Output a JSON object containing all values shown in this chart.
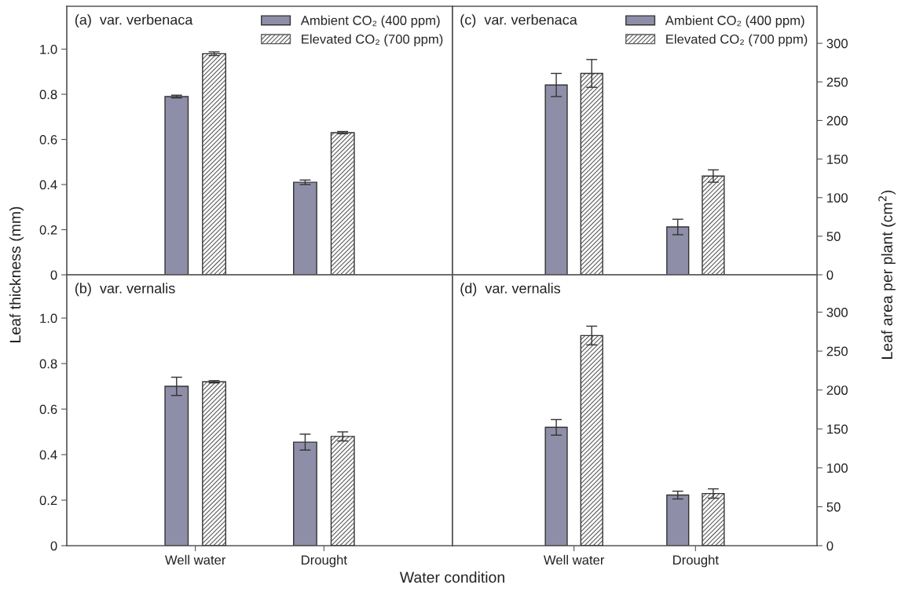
{
  "chart_data": [
    {
      "type": "bar",
      "title": "(a)  var. verbenaca",
      "ylabel": "Leaf thickness (mm)",
      "categories": [
        null,
        null
      ],
      "tick_labels": "y",
      "legend": "top right",
      "series": [
        {
          "name": "Ambient CO₂ (400 ppm)",
          "color": "#8e8ea8",
          "values": [
            0.79,
            0.41
          ],
          "errors": [
            0.006,
            0.01
          ]
        },
        {
          "name": "Elevated CO₂ (700 ppm)",
          "color": "#5a5a5a",
          "values": [
            0.98,
            0.63
          ],
          "errors": [
            0.008,
            0.005
          ]
        }
      ],
      "ylim": [
        0,
        1.19
      ],
      "yticks": [
        0,
        0.2,
        0.4,
        0.6,
        0.8,
        {
          "value": 1,
          "label": "1.0"
        }
      ]
    },
    {
      "type": "bar",
      "title": "(b)  var. vernalis",
      "xlabel": "Water condition",
      "categories": [
        "Well water",
        "Drought"
      ],
      "series": [
        {
          "color": "#8e8ea8",
          "values": [
            0.7,
            0.455
          ],
          "errors": [
            0.04,
            0.035
          ]
        },
        {
          "color": "#5a5a5a",
          "values": [
            0.72,
            0.48
          ],
          "errors": [
            0.005,
            0.02
          ]
        }
      ],
      "ylim": [
        0,
        1.19
      ],
      "yticks": [
        0,
        0.2,
        0.4,
        0.6,
        0.8,
        {
          "value": 1,
          "label": "1.0"
        }
      ]
    },
    {
      "type": "bar",
      "title": "(c)  var. verbenaca",
      "y2label": "Leaf area per plant (cm$^{2}$)",
      "categories": [
        null,
        null
      ],
      "tick_labels": "y",
      "legend": "top right",
      "series": [
        {
          "name": "Ambient CO₂ (400 ppm)",
          "color": "#8e8ea8",
          "axis": "y2",
          "values": [
            246,
            62
          ],
          "errors": [
            15,
            10
          ]
        },
        {
          "name": "Elevated CO₂ (700 ppm)",
          "color": "#5a5a5a",
          "axis": "y2",
          "values": [
            261,
            128
          ],
          "errors": [
            18,
            8
          ]
        }
      ],
      "y2lim": [
        0,
        348
      ],
      "y2ticks": [
        0,
        50,
        100,
        150,
        200,
        250,
        300
      ]
    },
    {
      "type": "bar",
      "title": "(d)  var. vernalis",
      "categories": [
        "Well water",
        "Drought"
      ],
      "series": [
        {
          "color": "#8e8ea8",
          "axis": "y2",
          "values": [
            152,
            65
          ],
          "errors": [
            10,
            5
          ]
        },
        {
          "color": "#5a5a5a",
          "axis": "y2",
          "values": [
            270,
            67
          ],
          "errors": [
            12,
            6
          ]
        }
      ],
      "y2lim": [
        0,
        348
      ],
      "y2ticks": [
        0,
        50,
        100,
        150,
        200,
        250,
        300
      ]
    }
  ]
}
